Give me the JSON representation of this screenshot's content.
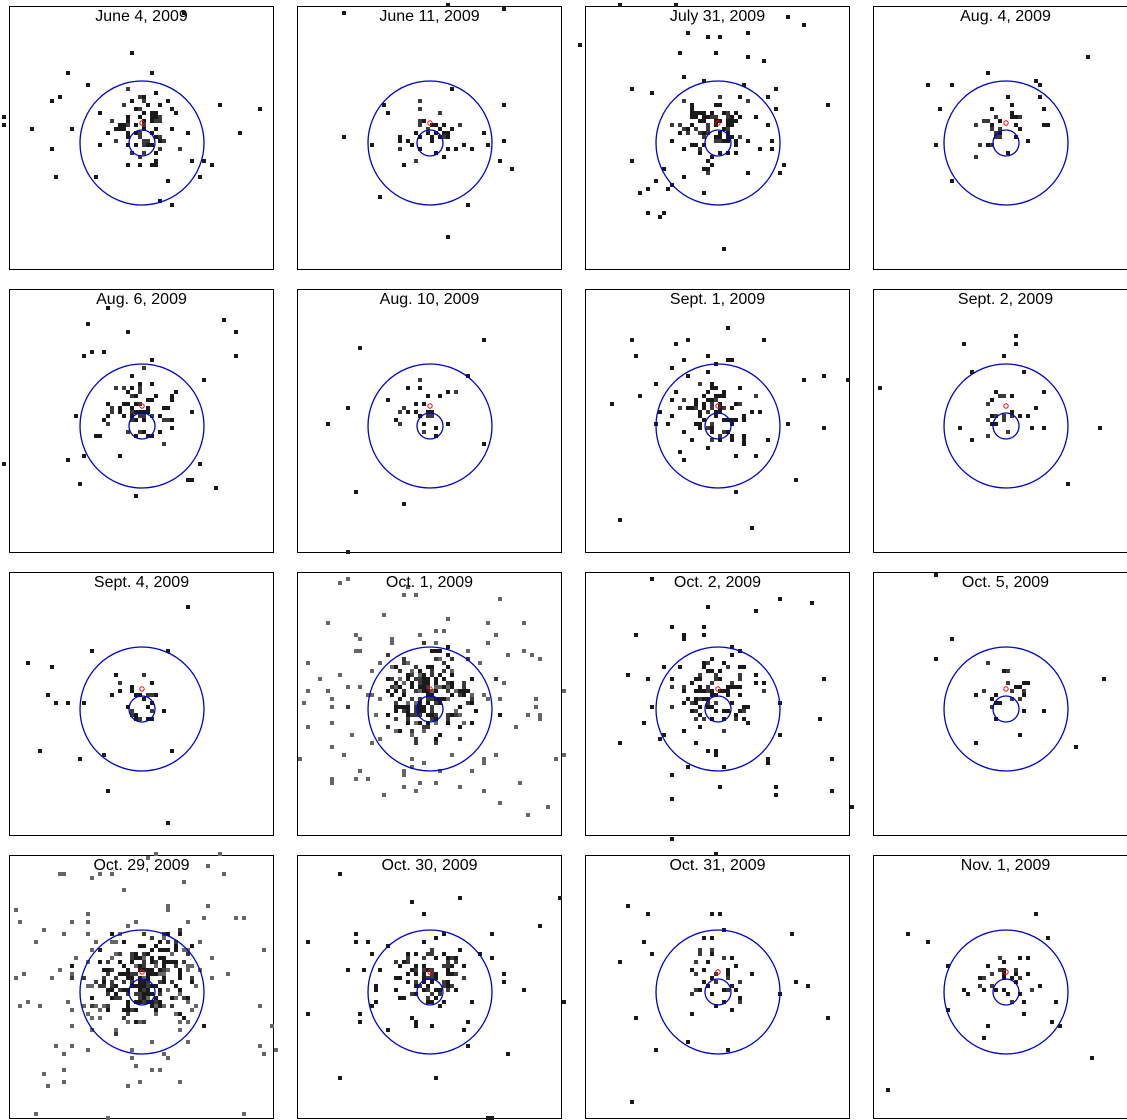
{
  "figure": {
    "columns": 4,
    "colors": {
      "frame": "#000000",
      "circle": "#0000cc",
      "marker": "#ff0000",
      "pixel_dark": "#1a1a1a",
      "pixel_mid": "#3a3a3a",
      "pixel_light": "#666666"
    },
    "panels": [
      {
        "title": "June 4, 2009",
        "density": 0.3
      },
      {
        "title": "June 11, 2009",
        "density": 0.15
      },
      {
        "title": "July 31, 2009",
        "density": 0.4
      },
      {
        "title": "Aug. 4, 2009",
        "density": 0.1
      },
      {
        "title": "Aug. 6, 2009",
        "density": 0.25
      },
      {
        "title": "Aug. 10, 2009",
        "density": 0.08
      },
      {
        "title": "Sept. 1, 2009",
        "density": 0.35
      },
      {
        "title": "Sept. 2, 2009",
        "density": 0.08
      },
      {
        "title": "Sept. 4, 2009",
        "density": 0.1
      },
      {
        "title": "Oct. 1, 2009",
        "density": 1.0
      },
      {
        "title": "Oct. 2, 2009",
        "density": 0.45
      },
      {
        "title": "Oct. 5, 2009",
        "density": 0.06
      },
      {
        "title": "Oct. 29, 2009",
        "density": 1.1
      },
      {
        "title": "Oct. 30, 2009",
        "density": 0.4
      },
      {
        "title": "Oct. 31, 2009",
        "density": 0.15
      },
      {
        "title": "Nov. 1, 2009",
        "density": 0.12
      }
    ]
  }
}
